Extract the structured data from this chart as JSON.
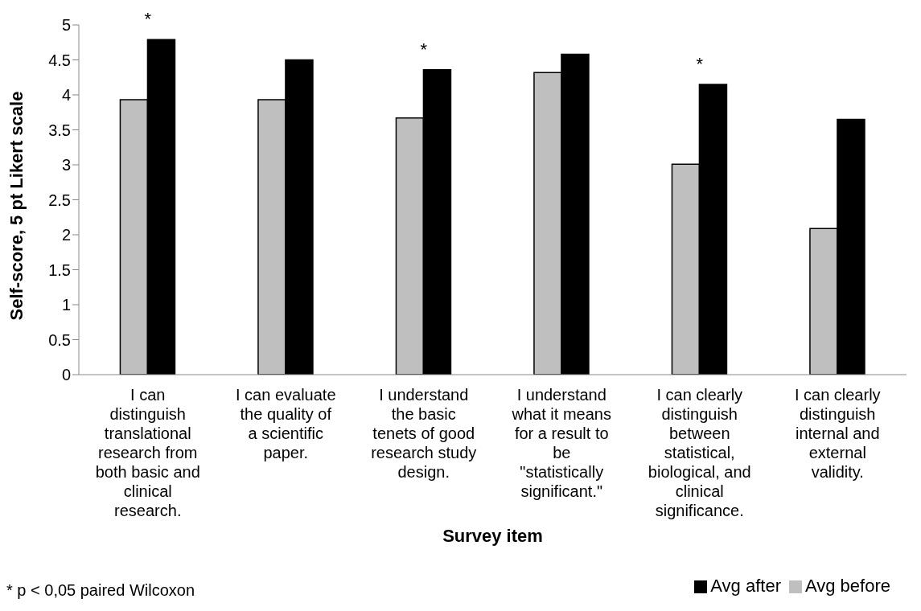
{
  "chart_data": {
    "type": "bar",
    "xlabel": "Survey item",
    "ylabel": "Self-score, 5 pt Likert scale",
    "categories": [
      "I can distinguish translational research from both basic and clinical research.",
      "I can evaluate the quality of a scientific paper.",
      "I understand the basic tenets of good research study design.",
      "I understand what it means for a result to be \"statistically significant.\"",
      "I can clearly distinguish between statistical, biological, and clinical significance.",
      "I can clearly distinguish internal and external validity."
    ],
    "series": [
      {
        "name": "Avg before",
        "color": "#bfbfbf",
        "values": [
          3.93,
          3.93,
          3.67,
          4.32,
          3.01,
          2.09
        ]
      },
      {
        "name": "Avg after",
        "color": "#000000",
        "values": [
          4.79,
          4.5,
          4.36,
          4.58,
          4.15,
          3.65
        ]
      }
    ],
    "ylim": [
      0,
      5
    ],
    "yticks": [
      0,
      0.5,
      1,
      1.5,
      2,
      2.5,
      3,
      3.5,
      4,
      4.5,
      5
    ],
    "grid": false,
    "legend": "bottom right",
    "annotations": [
      {
        "text": "*",
        "x": "I can distinguish translational research from both basic and clinical research.",
        "y": 4.79
      },
      {
        "text": "*",
        "x": "I understand the basic tenets of good research study design.",
        "y": 4.36
      },
      {
        "text": "*",
        "x": "I can clearly distinguish between statistical, biological, and clinical significance.",
        "y": 4.15
      },
      "* p < 0,05 paired Wilcoxon"
    ]
  }
}
